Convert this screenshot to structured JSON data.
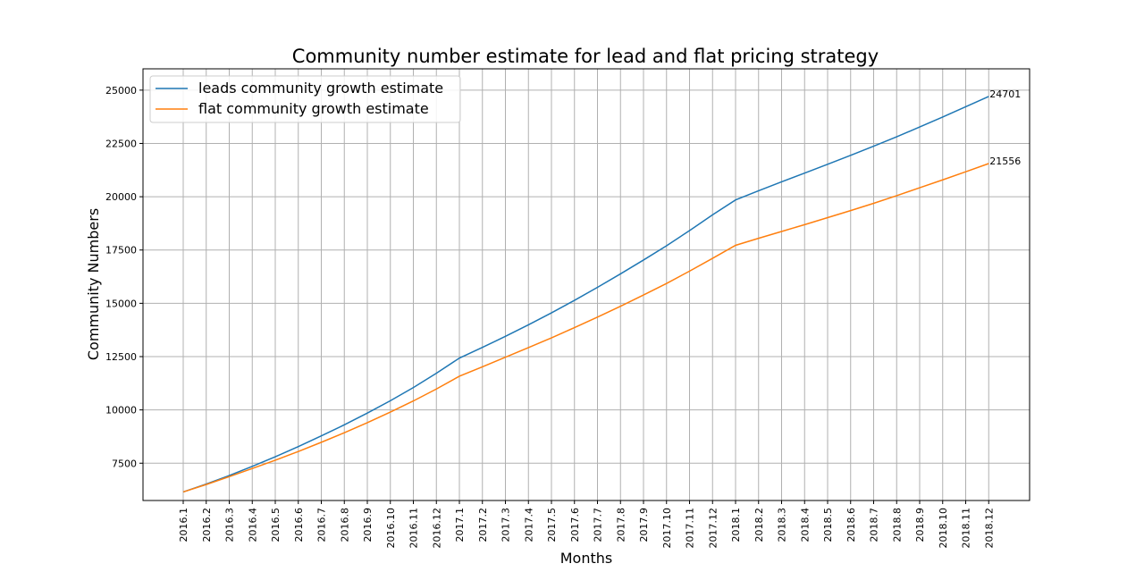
{
  "chart_data": {
    "type": "line",
    "title": "Community number estimate for lead and flat pricing strategy",
    "xlabel": "Months",
    "ylabel": "Community Numbers",
    "x": [
      "2016.1",
      "2016.2",
      "2016.3",
      "2016.4",
      "2016.5",
      "2016.6",
      "2016.7",
      "2016.8",
      "2016.9",
      "2016.10",
      "2016.11",
      "2016.12",
      "2017.1",
      "2017.2",
      "2017.3",
      "2017.4",
      "2017.5",
      "2017.6",
      "2017.7",
      "2017.8",
      "2017.9",
      "2017.10",
      "2017.11",
      "2017.12",
      "2018.1",
      "2018.2",
      "2018.3",
      "2018.4",
      "2018.5",
      "2018.6",
      "2018.7",
      "2018.8",
      "2018.9",
      "2018.10",
      "2018.11",
      "2018.12"
    ],
    "ylim": [
      5750,
      26000
    ],
    "yticks": [
      7500,
      10000,
      12500,
      15000,
      17500,
      20000,
      22500,
      25000
    ],
    "grid": true,
    "legend_position": "top-left",
    "series": [
      {
        "name": "leads community growth estimate",
        "color": "#1f77b4",
        "values": [
          6150,
          6520,
          6920,
          7350,
          7800,
          8280,
          8780,
          9300,
          9850,
          10430,
          11050,
          11720,
          12430,
          12930,
          13450,
          13990,
          14550,
          15140,
          15750,
          16380,
          17030,
          17700,
          18410,
          19150,
          19850,
          20280,
          20700,
          21110,
          21520,
          21940,
          22370,
          22810,
          23270,
          23740,
          24220,
          24701
        ],
        "end_label": "24701"
      },
      {
        "name": "flat community growth estimate",
        "color": "#ff7f0e",
        "values": [
          6150,
          6500,
          6870,
          7250,
          7640,
          8050,
          8480,
          8930,
          9400,
          9900,
          10420,
          10980,
          11580,
          12020,
          12470,
          12920,
          13380,
          13860,
          14350,
          14860,
          15390,
          15930,
          16510,
          17110,
          17720,
          18050,
          18370,
          18690,
          19020,
          19350,
          19690,
          20050,
          20420,
          20790,
          21170,
          21556
        ],
        "end_label": "21556"
      }
    ]
  }
}
